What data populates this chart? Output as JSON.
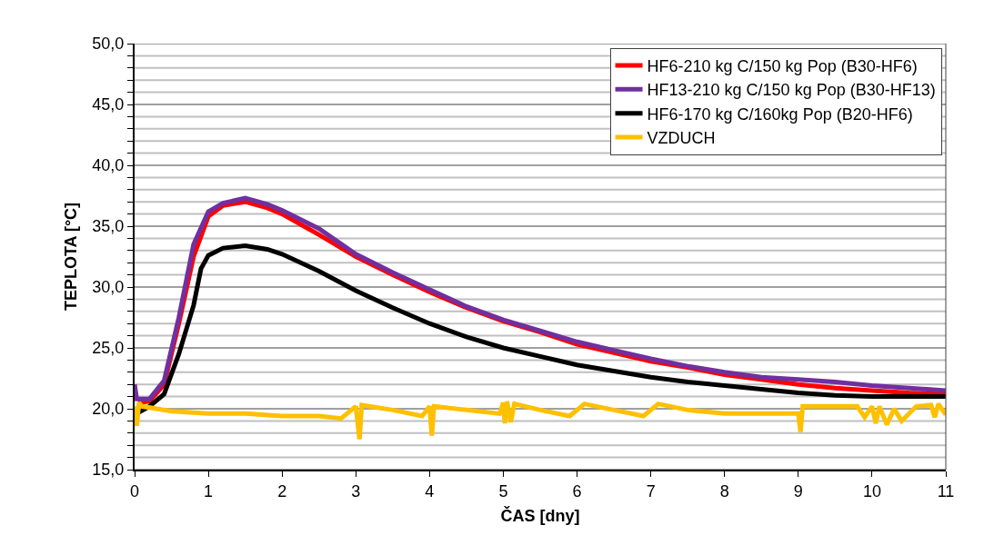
{
  "chart_data": {
    "type": "line",
    "xlabel": "ČAS [dny]",
    "ylabel": "TEPLOTA [°C]",
    "xlim": [
      0,
      11
    ],
    "xticks": [
      0,
      1,
      2,
      3,
      4,
      5,
      6,
      7,
      8,
      9,
      10,
      11
    ],
    "ylim": [
      15,
      50
    ],
    "yticks": [
      {
        "value": 15,
        "label": "15,0"
      },
      {
        "value": 16,
        "label": null
      },
      {
        "value": 17,
        "label": null
      },
      {
        "value": 18,
        "label": null
      },
      {
        "value": 19,
        "label": null
      },
      {
        "value": 20,
        "label": "20,0"
      },
      {
        "value": 21,
        "label": null
      },
      {
        "value": 22,
        "label": null
      },
      {
        "value": 23,
        "label": null
      },
      {
        "value": 24,
        "label": null
      },
      {
        "value": 25,
        "label": "25,0"
      },
      {
        "value": 26,
        "label": null
      },
      {
        "value": 27,
        "label": null
      },
      {
        "value": 28,
        "label": null
      },
      {
        "value": 29,
        "label": null
      },
      {
        "value": 30,
        "label": "30,0"
      },
      {
        "value": 31,
        "label": null
      },
      {
        "value": 32,
        "label": null
      },
      {
        "value": 33,
        "label": null
      },
      {
        "value": 34,
        "label": null
      },
      {
        "value": 35,
        "label": "35,0"
      },
      {
        "value": 36,
        "label": null
      },
      {
        "value": 37,
        "label": null
      },
      {
        "value": 38,
        "label": null
      },
      {
        "value": 39,
        "label": null
      },
      {
        "value": 40,
        "label": "40,0"
      },
      {
        "value": 41,
        "label": null
      },
      {
        "value": 42,
        "label": null
      },
      {
        "value": 43,
        "label": null
      },
      {
        "value": 44,
        "label": null
      },
      {
        "value": 45,
        "label": "45,0"
      },
      {
        "value": 46,
        "label": null
      },
      {
        "value": 47,
        "label": null
      },
      {
        "value": 48,
        "label": null
      },
      {
        "value": 49,
        "label": null
      },
      {
        "value": 50,
        "label": "50,0"
      }
    ],
    "grid": "y",
    "legend": "top right",
    "marker": "none",
    "line_style": "solid",
    "series": [
      {
        "name": "HF6-210 kg C/150 kg Pop (B30-HF6)",
        "color": "#ff0000",
        "x": [
          0.05,
          0.2,
          0.4,
          0.6,
          0.8,
          1.0,
          1.2,
          1.5,
          1.8,
          2,
          2.5,
          3,
          3.5,
          4,
          4.5,
          5,
          5.5,
          6,
          6.5,
          7,
          7.5,
          8,
          8.5,
          9,
          9.5,
          10,
          10.5,
          11
        ],
        "values": [
          20.5,
          20.6,
          22.0,
          27.0,
          32.5,
          35.8,
          36.7,
          37.0,
          36.5,
          36.0,
          34.3,
          32.5,
          31.0,
          29.6,
          28.3,
          27.2,
          26.3,
          25.3,
          24.6,
          23.9,
          23.4,
          22.8,
          22.4,
          22.0,
          21.7,
          21.5,
          21.3,
          21.2
        ]
      },
      {
        "name": "HF13-210 kg C/150 kg Pop (B30-HF13)",
        "color": "#7030a0",
        "x": [
          0,
          0.03,
          0.2,
          0.4,
          0.6,
          0.8,
          1.0,
          1.2,
          1.5,
          1.8,
          2,
          2.5,
          3,
          3.5,
          4,
          4.5,
          5,
          5.5,
          6,
          6.5,
          7,
          7.5,
          8,
          8.5,
          9,
          9.5,
          10,
          10.5,
          11
        ],
        "values": [
          22.0,
          20.8,
          20.8,
          22.3,
          27.5,
          33.5,
          36.2,
          36.9,
          37.3,
          36.8,
          36.3,
          34.8,
          32.7,
          31.2,
          29.8,
          28.4,
          27.3,
          26.4,
          25.5,
          24.8,
          24.1,
          23.5,
          23.0,
          22.6,
          22.4,
          22.2,
          21.9,
          21.7,
          21.5
        ]
      },
      {
        "name": "HF6-170 kg C/160kg Pop (B20-HF6)",
        "color": "#000000",
        "x": [
          0,
          0.2,
          0.4,
          0.6,
          0.8,
          0.9,
          1.0,
          1.2,
          1.5,
          1.8,
          2,
          2.5,
          3,
          3.5,
          4,
          4.5,
          5,
          5.5,
          6,
          6.5,
          7,
          7.5,
          8,
          8.5,
          9,
          9.5,
          10,
          10.5,
          11
        ],
        "values": [
          19.5,
          20.2,
          21.2,
          24.5,
          28.5,
          31.5,
          32.6,
          33.2,
          33.4,
          33.1,
          32.7,
          31.3,
          29.7,
          28.3,
          27.0,
          25.9,
          25.0,
          24.3,
          23.6,
          23.1,
          22.6,
          22.2,
          21.9,
          21.6,
          21.3,
          21.1,
          21.0,
          21.0,
          21.0
        ]
      },
      {
        "name": "VZDUCH",
        "color": "#ffc000",
        "x": [
          0,
          0.03,
          0.06,
          0.1,
          0.5,
          1,
          1.5,
          2,
          2.5,
          2.8,
          3.0,
          3.05,
          3.08,
          3.5,
          3.9,
          4.0,
          4.03,
          4.06,
          4.5,
          4.95,
          5.0,
          5.02,
          5.05,
          5.1,
          5.15,
          5.5,
          5.9,
          6.1,
          6.5,
          6.9,
          7.1,
          7.5,
          8,
          8.5,
          9.0,
          9.03,
          9.06,
          9.5,
          9.8,
          9.9,
          10.0,
          10.05,
          10.1,
          10.2,
          10.3,
          10.4,
          10.6,
          10.8,
          10.85,
          10.9,
          11
        ],
        "values": [
          20.2,
          18.6,
          20.5,
          20.2,
          19.8,
          19.6,
          19.6,
          19.4,
          19.4,
          19.2,
          20.2,
          17.5,
          20.3,
          19.9,
          19.4,
          20.2,
          17.8,
          20.2,
          19.9,
          19.6,
          20.5,
          18.8,
          20.6,
          18.9,
          20.4,
          19.9,
          19.4,
          20.4,
          19.9,
          19.4,
          20.4,
          19.9,
          19.6,
          19.6,
          19.6,
          18.1,
          20.2,
          20.2,
          20.2,
          19.3,
          20.2,
          18.8,
          20.2,
          18.7,
          20.0,
          19.0,
          20.2,
          20.3,
          19.3,
          20.4,
          19.5
        ]
      }
    ]
  }
}
